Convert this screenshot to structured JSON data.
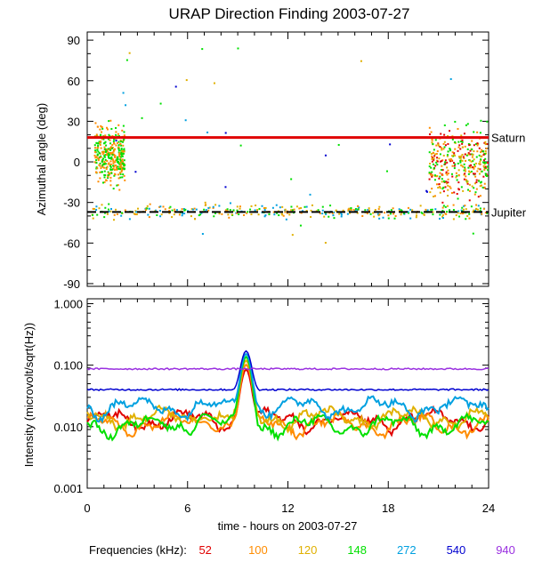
{
  "chart_data": {
    "title": "URAP Direction Finding  2003-07-27",
    "xlabel": "time - hours on 2003-07-27",
    "xlim": [
      0,
      24
    ],
    "xticks": [
      0,
      6,
      12,
      18,
      24
    ],
    "panels": [
      {
        "type": "scatter",
        "ylabel": "Azimuthal angle (deg)",
        "ylim": [
          -92,
          96
        ],
        "yticks": [
          90,
          60,
          30,
          0,
          -30,
          -60,
          -90
        ],
        "reference_lines": [
          {
            "name": "Saturn",
            "value": 18,
            "color": "#e00000"
          },
          {
            "name": "Jupiter",
            "value": -37,
            "color": "#000000"
          }
        ],
        "scatter_clusters": [
          {
            "x_range": [
              0.2,
              23.9
            ],
            "y_center": -36,
            "y_spread": 5,
            "colors": [
              "#00e000",
              "#e0b000",
              "#ff8c00",
              "#00a0e0"
            ]
          },
          {
            "x_range": [
              0.4,
              2.2
            ],
            "y_center": 5,
            "y_spread": 20,
            "colors": [
              "#00e000",
              "#ff8c00"
            ]
          },
          {
            "x_range": [
              20.4,
              23.9
            ],
            "y_center": 0,
            "y_spread": 25,
            "colors": [
              "#00e000",
              "#e0b000",
              "#ff8c00",
              "#e00000"
            ]
          }
        ]
      },
      {
        "type": "line",
        "ylabel": "Intensity (microvolt/sqrt(Hz))",
        "yscale": "log",
        "ylim": [
          0.001,
          1.2
        ],
        "ytick_labels": [
          "1.000",
          "0.100",
          "0.010",
          "0.001"
        ],
        "series": [
          {
            "name": "52",
            "color": "#e00000",
            "baseline": 0.013
          },
          {
            "name": "100",
            "color": "#ff8c00",
            "baseline": 0.011
          },
          {
            "name": "120",
            "color": "#e0b000",
            "baseline": 0.014
          },
          {
            "name": "148",
            "color": "#00e000",
            "baseline": 0.0105
          },
          {
            "name": "272",
            "color": "#00a0e0",
            "baseline": 0.021
          },
          {
            "name": "540",
            "color": "#0000d0",
            "baseline": 0.04
          },
          {
            "name": "940",
            "color": "#9a30e0",
            "baseline": 0.087
          }
        ],
        "events": [
          {
            "x": 7.0,
            "peak": 0.02
          },
          {
            "x": 9.5,
            "peak": 0.17
          }
        ]
      }
    ]
  },
  "legend": {
    "label": "Frequencies (kHz):",
    "items": [
      {
        "name": "52",
        "color": "#e00000"
      },
      {
        "name": "100",
        "color": "#ff8c00"
      },
      {
        "name": "120",
        "color": "#e0b000"
      },
      {
        "name": "148",
        "color": "#00e000"
      },
      {
        "name": "272",
        "color": "#00a0e0"
      },
      {
        "name": "540",
        "color": "#0000d0"
      },
      {
        "name": "940",
        "color": "#9a30e0"
      }
    ]
  }
}
